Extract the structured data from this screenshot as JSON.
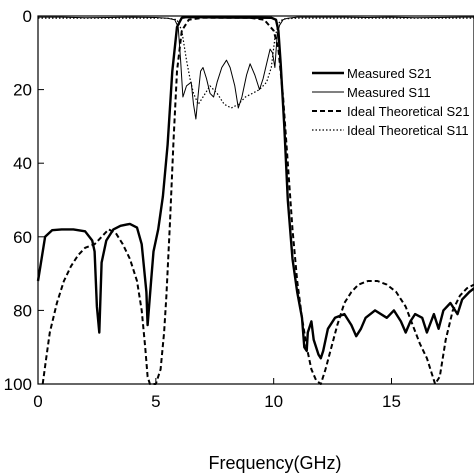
{
  "chart_data": {
    "type": "line",
    "title": "",
    "xlabel": "Frequency(GHz)",
    "ylabel": "",
    "xlim": [
      0,
      18.5
    ],
    "ylim": [
      0,
      100
    ],
    "y_inverted": true,
    "grid": false,
    "legend_position": "top-right",
    "x_ticks": [
      0,
      5,
      10,
      15
    ],
    "y_ticks": [
      0,
      20,
      40,
      60,
      80,
      100
    ],
    "y_tick_labels": [
      "0",
      "20",
      "40",
      "60",
      "80",
      "100"
    ],
    "series": [
      {
        "name": "Measured S21",
        "style": "solid-thick",
        "color": "#000000",
        "points": [
          [
            0,
            72
          ],
          [
            0.1,
            68
          ],
          [
            0.3,
            60
          ],
          [
            0.6,
            58.2
          ],
          [
            1,
            58
          ],
          [
            1.5,
            58
          ],
          [
            2,
            58.5
          ],
          [
            2.3,
            61
          ],
          [
            2.4,
            64
          ],
          [
            2.5,
            79
          ],
          [
            2.6,
            86
          ],
          [
            2.7,
            67
          ],
          [
            2.9,
            61
          ],
          [
            3.2,
            58
          ],
          [
            3.5,
            57
          ],
          [
            3.9,
            56.5
          ],
          [
            4.2,
            57.5
          ],
          [
            4.4,
            62
          ],
          [
            4.6,
            75
          ],
          [
            4.65,
            84
          ],
          [
            4.8,
            72
          ],
          [
            4.9,
            64
          ],
          [
            5.1,
            58
          ],
          [
            5.3,
            49
          ],
          [
            5.5,
            35
          ],
          [
            5.7,
            15
          ],
          [
            5.9,
            3
          ],
          [
            6.1,
            0.5
          ],
          [
            6.3,
            0.3
          ],
          [
            8,
            0.4
          ],
          [
            9.9,
            0.5
          ],
          [
            10.1,
            1
          ],
          [
            10.2,
            4
          ],
          [
            10.3,
            13
          ],
          [
            10.45,
            30
          ],
          [
            10.6,
            50
          ],
          [
            10.8,
            66
          ],
          [
            11,
            75
          ],
          [
            11.2,
            82
          ],
          [
            11.3,
            90
          ],
          [
            11.4,
            91
          ],
          [
            11.45,
            86
          ],
          [
            11.6,
            83
          ],
          [
            11.7,
            88
          ],
          [
            11.9,
            92
          ],
          [
            12,
            93
          ],
          [
            12.1,
            91
          ],
          [
            12.3,
            85
          ],
          [
            12.6,
            82
          ],
          [
            13,
            81
          ],
          [
            13.3,
            84
          ],
          [
            13.5,
            87
          ],
          [
            13.7,
            85
          ],
          [
            13.9,
            82
          ],
          [
            14.3,
            80
          ],
          [
            14.8,
            82
          ],
          [
            15.1,
            80
          ],
          [
            15.4,
            83
          ],
          [
            15.6,
            86
          ],
          [
            15.8,
            83
          ],
          [
            16,
            81
          ],
          [
            16.3,
            82
          ],
          [
            16.5,
            86
          ],
          [
            16.8,
            81
          ],
          [
            17,
            85
          ],
          [
            17.2,
            80
          ],
          [
            17.5,
            78
          ],
          [
            17.8,
            81
          ],
          [
            18,
            77
          ],
          [
            18.3,
            75
          ],
          [
            18.5,
            74
          ]
        ]
      },
      {
        "name": "Measured S11",
        "style": "solid-thin",
        "color": "#000000",
        "points": [
          [
            0,
            0.3
          ],
          [
            1,
            0.3
          ],
          [
            2,
            0.5
          ],
          [
            3,
            0.4
          ],
          [
            4,
            0.3
          ],
          [
            5,
            0.4
          ],
          [
            5.5,
            0.6
          ],
          [
            5.8,
            1
          ],
          [
            5.95,
            3
          ],
          [
            6.05,
            12
          ],
          [
            6.15,
            22
          ],
          [
            6.3,
            19
          ],
          [
            6.5,
            18
          ],
          [
            6.6,
            24
          ],
          [
            6.7,
            28
          ],
          [
            6.8,
            21
          ],
          [
            6.9,
            15
          ],
          [
            7,
            14
          ],
          [
            7.15,
            17
          ],
          [
            7.3,
            21
          ],
          [
            7.45,
            22
          ],
          [
            7.6,
            18
          ],
          [
            7.8,
            14
          ],
          [
            8,
            12
          ],
          [
            8.15,
            14
          ],
          [
            8.35,
            19
          ],
          [
            8.5,
            25
          ],
          [
            8.65,
            22
          ],
          [
            8.85,
            16
          ],
          [
            9,
            13
          ],
          [
            9.2,
            16
          ],
          [
            9.4,
            20
          ],
          [
            9.55,
            17
          ],
          [
            9.7,
            13
          ],
          [
            9.85,
            9
          ],
          [
            9.95,
            10
          ],
          [
            10.05,
            14
          ],
          [
            10.15,
            5
          ],
          [
            10.25,
            2.5
          ],
          [
            10.4,
            1
          ],
          [
            10.6,
            0.6
          ],
          [
            11,
            0.3
          ],
          [
            12,
            0.3
          ],
          [
            13,
            0.3
          ],
          [
            14,
            0.4
          ],
          [
            15,
            0.3
          ],
          [
            16,
            0.5
          ],
          [
            17,
            0.4
          ],
          [
            18,
            0.3
          ],
          [
            18.5,
            0.3
          ]
        ]
      },
      {
        "name": "Ideal Theoretical S21",
        "style": "dashed",
        "color": "#000000",
        "points": [
          [
            0.2,
            100
          ],
          [
            0.35,
            93
          ],
          [
            0.5,
            86
          ],
          [
            0.8,
            78
          ],
          [
            1.1,
            72
          ],
          [
            1.4,
            68
          ],
          [
            1.7,
            65
          ],
          [
            2,
            63
          ],
          [
            2.4,
            62
          ],
          [
            2.7,
            60
          ],
          [
            3,
            58
          ],
          [
            3.3,
            59
          ],
          [
            3.6,
            62
          ],
          [
            3.9,
            66
          ],
          [
            4.2,
            72
          ],
          [
            4.4,
            80
          ],
          [
            4.55,
            90
          ],
          [
            4.65,
            98
          ],
          [
            4.75,
            100
          ],
          [
            5.0,
            100
          ],
          [
            5.2,
            96
          ],
          [
            5.35,
            86
          ],
          [
            5.45,
            76
          ],
          [
            5.6,
            56
          ],
          [
            5.75,
            34
          ],
          [
            5.9,
            15
          ],
          [
            6.1,
            4
          ],
          [
            6.4,
            1
          ],
          [
            7,
            0.5
          ],
          [
            9,
            0.5
          ],
          [
            9.6,
            1
          ],
          [
            10,
            4
          ],
          [
            10.2,
            9
          ],
          [
            10.4,
            22
          ],
          [
            10.6,
            40
          ],
          [
            10.8,
            58
          ],
          [
            11,
            72
          ],
          [
            11.2,
            82
          ],
          [
            11.4,
            90
          ],
          [
            11.6,
            96
          ],
          [
            11.8,
            99
          ],
          [
            12,
            100
          ],
          [
            12.2,
            96
          ],
          [
            12.45,
            90
          ],
          [
            12.7,
            84
          ],
          [
            13,
            78
          ],
          [
            13.3,
            75
          ],
          [
            13.6,
            73
          ],
          [
            14,
            72
          ],
          [
            14.4,
            72
          ],
          [
            14.8,
            73
          ],
          [
            15.2,
            75
          ],
          [
            15.6,
            79
          ],
          [
            15.9,
            84
          ],
          [
            16.2,
            89
          ],
          [
            16.5,
            93
          ],
          [
            16.7,
            97
          ],
          [
            16.85,
            100
          ],
          [
            17.05,
            98
          ],
          [
            17.3,
            88
          ],
          [
            17.6,
            80
          ],
          [
            17.9,
            76
          ],
          [
            18.2,
            74
          ],
          [
            18.5,
            73
          ]
        ]
      },
      {
        "name": "Ideal Theoretical S11",
        "style": "dotted",
        "color": "#000000",
        "points": [
          [
            0,
            0.6
          ],
          [
            2,
            0.6
          ],
          [
            4,
            0.6
          ],
          [
            5.5,
            0.6
          ],
          [
            5.9,
            1
          ],
          [
            6.1,
            4
          ],
          [
            6.3,
            12
          ],
          [
            6.45,
            17
          ],
          [
            6.6,
            21
          ],
          [
            6.8,
            24
          ],
          [
            7,
            22
          ],
          [
            7.3,
            19
          ],
          [
            7.6,
            21
          ],
          [
            7.9,
            24
          ],
          [
            8.2,
            25
          ],
          [
            8.5,
            24
          ],
          [
            8.8,
            22
          ],
          [
            9.1,
            21
          ],
          [
            9.4,
            20
          ],
          [
            9.7,
            18
          ],
          [
            9.9,
            14
          ],
          [
            10.05,
            6
          ],
          [
            10.2,
            2
          ],
          [
            10.4,
            0.8
          ],
          [
            11,
            0.6
          ],
          [
            14,
            0.6
          ],
          [
            18.5,
            0.6
          ]
        ]
      }
    ]
  }
}
